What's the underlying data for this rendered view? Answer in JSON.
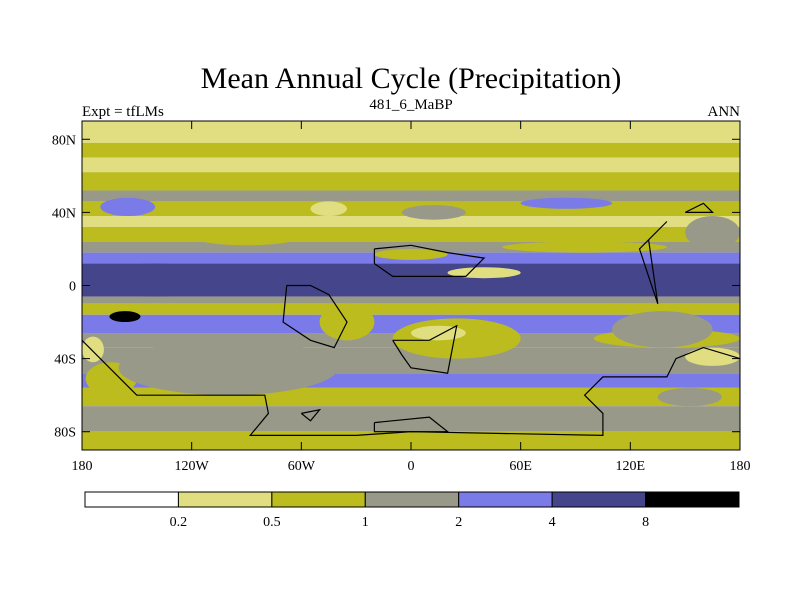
{
  "chart_data": {
    "type": "heatmap",
    "title": "Mean Annual Cycle (Precipitation)",
    "left_label": "Expt = tfLMs",
    "center_label": "481_6_MaBP",
    "right_label": "ANN",
    "x_ticks": [
      {
        "value": -180,
        "label": "180"
      },
      {
        "value": -120,
        "label": "120W"
      },
      {
        "value": -60,
        "label": "60W"
      },
      {
        "value": 0,
        "label": "0"
      },
      {
        "value": 60,
        "label": "60E"
      },
      {
        "value": 120,
        "label": "120E"
      },
      {
        "value": 180,
        "label": "180"
      }
    ],
    "y_ticks": [
      {
        "value": 80,
        "label": "80N"
      },
      {
        "value": 40,
        "label": "40N"
      },
      {
        "value": 0,
        "label": "0"
      },
      {
        "value": -40,
        "label": "40S"
      },
      {
        "value": -80,
        "label": "80S"
      }
    ],
    "xlim": [
      -180,
      180
    ],
    "ylim": [
      -90,
      90
    ],
    "levels": [
      0.2,
      0.5,
      1,
      2,
      4,
      8
    ],
    "level_labels": [
      "0.2",
      "0.5",
      "1",
      "2",
      "4",
      "8"
    ],
    "colors": [
      "#ffffff",
      "#e0de80",
      "#bcbc1e",
      "#999989",
      "#7a7ae8",
      "#45458c",
      "#000000"
    ],
    "lat_bands": [
      {
        "lat": [
          78,
          90
        ],
        "value": 0.35
      },
      {
        "lat": [
          70,
          78
        ],
        "value": 0.7
      },
      {
        "lat": [
          62,
          70
        ],
        "value": 0.4
      },
      {
        "lat": [
          52,
          62
        ],
        "value": 0.7
      },
      {
        "lat": [
          46,
          52
        ],
        "value": 1.5
      },
      {
        "lat": [
          38,
          46
        ],
        "value": 0.7
      },
      {
        "lat": [
          32,
          38
        ],
        "value": 0.35
      },
      {
        "lat": [
          24,
          32
        ],
        "value": 0.7
      },
      {
        "lat": [
          18,
          24
        ],
        "value": 1.5
      },
      {
        "lat": [
          12,
          18
        ],
        "value": 3
      },
      {
        "lat": [
          -6,
          12
        ],
        "value": 5.5
      },
      {
        "lat": [
          -10,
          -6
        ],
        "value": 1.5
      },
      {
        "lat": [
          -16,
          -10
        ],
        "value": 0.7
      },
      {
        "lat": [
          -26,
          -16
        ],
        "value": 3
      },
      {
        "lat": [
          -34,
          -26
        ],
        "value": 1.5
      },
      {
        "lat": [
          -48,
          -34
        ],
        "value": 1.5
      },
      {
        "lat": [
          -56,
          -48
        ],
        "value": 2.5
      },
      {
        "lat": [
          -66,
          -56
        ],
        "value": 0.7
      },
      {
        "lat": [
          -80,
          -66
        ],
        "value": 1.5
      },
      {
        "lat": [
          -90,
          -80
        ],
        "value": 0.7
      }
    ],
    "patches": [
      {
        "lon": [
          -180,
          -100
        ],
        "lat": [
          -6,
          12
        ],
        "value": 5.5
      },
      {
        "lon": [
          -165,
          -148
        ],
        "lat": [
          -20,
          -14
        ],
        "value": 9
      },
      {
        "lon": [
          -180,
          -168
        ],
        "lat": [
          -42,
          -28
        ],
        "value": 0.35
      },
      {
        "lon": [
          -178,
          -150
        ],
        "lat": [
          -60,
          -42
        ],
        "value": 0.7
      },
      {
        "lon": [
          -160,
          -40
        ],
        "lat": [
          -60,
          -30
        ],
        "value": 1.5
      },
      {
        "lon": [
          -50,
          -20
        ],
        "lat": [
          -30,
          -10
        ],
        "value": 0.7
      },
      {
        "lon": [
          -10,
          60
        ],
        "lat": [
          -40,
          -18
        ],
        "value": 0.7
      },
      {
        "lon": [
          0,
          30
        ],
        "lat": [
          -30,
          -22
        ],
        "value": 0.35
      },
      {
        "lon": [
          20,
          60
        ],
        "lat": [
          4,
          10
        ],
        "value": 0.35
      },
      {
        "lon": [
          -20,
          20
        ],
        "lat": [
          14,
          20
        ],
        "value": 0.7
      },
      {
        "lon": [
          -120,
          -60
        ],
        "lat": [
          22,
          32
        ],
        "value": 0.7
      },
      {
        "lon": [
          100,
          180
        ],
        "lat": [
          -34,
          -24
        ],
        "value": 0.7
      },
      {
        "lon": [
          150,
          180
        ],
        "lat": [
          -44,
          -34
        ],
        "value": 0.35
      },
      {
        "lon": [
          110,
          165
        ],
        "lat": [
          -34,
          -14
        ],
        "value": 1.5
      },
      {
        "lon": [
          135,
          170
        ],
        "lat": [
          -66,
          -56
        ],
        "value": 1.5
      },
      {
        "lon": [
          -55,
          -35
        ],
        "lat": [
          38,
          46
        ],
        "value": 0.35
      },
      {
        "lon": [
          -5,
          30
        ],
        "lat": [
          36,
          44
        ],
        "value": 1.5
      },
      {
        "lon": [
          -170,
          -140
        ],
        "lat": [
          38,
          48
        ],
        "value": 3
      },
      {
        "lon": [
          50,
          140
        ],
        "lat": [
          18,
          24
        ],
        "value": 0.7
      },
      {
        "lon": [
          150,
          180
        ],
        "lat": [
          20,
          38
        ],
        "value": 1.5
      },
      {
        "lon": [
          60,
          110
        ],
        "lat": [
          42,
          48
        ],
        "value": 2.5
      }
    ],
    "outlines": [
      [
        [
          -180,
          -30
        ],
        [
          -150,
          -60
        ],
        [
          -80,
          -60
        ],
        [
          -78,
          -70
        ],
        [
          -88,
          -82
        ],
        [
          -30,
          -82
        ],
        [
          0,
          -80
        ],
        [
          105,
          -82
        ],
        [
          105,
          -70
        ],
        [
          95,
          -60
        ],
        [
          105,
          -50
        ],
        [
          140,
          -50
        ],
        [
          145,
          -40
        ],
        [
          160,
          -34
        ],
        [
          180,
          -40
        ]
      ],
      [
        [
          -68,
          0
        ],
        [
          -70,
          -20
        ],
        [
          -55,
          -30
        ],
        [
          -42,
          -34
        ],
        [
          -35,
          -20
        ],
        [
          -45,
          -5
        ],
        [
          -55,
          0
        ],
        [
          -68,
          0
        ]
      ],
      [
        [
          -10,
          -30
        ],
        [
          10,
          -30
        ],
        [
          25,
          -22
        ],
        [
          20,
          -48
        ],
        [
          0,
          -45
        ],
        [
          -5,
          -38
        ],
        [
          -10,
          -30
        ]
      ],
      [
        [
          -20,
          20
        ],
        [
          0,
          22
        ],
        [
          20,
          18
        ],
        [
          40,
          15
        ],
        [
          30,
          5
        ],
        [
          -10,
          5
        ],
        [
          -20,
          12
        ],
        [
          -20,
          20
        ]
      ],
      [
        [
          130,
          25
        ],
        [
          140,
          35
        ],
        [
          125,
          20
        ],
        [
          130,
          5
        ],
        [
          135,
          -10
        ],
        [
          130,
          25
        ]
      ],
      [
        [
          150,
          40
        ],
        [
          165,
          40
        ],
        [
          160,
          45
        ],
        [
          150,
          40
        ]
      ],
      [
        [
          -60,
          -70
        ],
        [
          -50,
          -68
        ],
        [
          -55,
          -74
        ],
        [
          -60,
          -70
        ]
      ],
      [
        [
          -20,
          -75
        ],
        [
          10,
          -72
        ],
        [
          20,
          -80
        ],
        [
          -20,
          -80
        ],
        [
          -20,
          -75
        ]
      ]
    ]
  }
}
